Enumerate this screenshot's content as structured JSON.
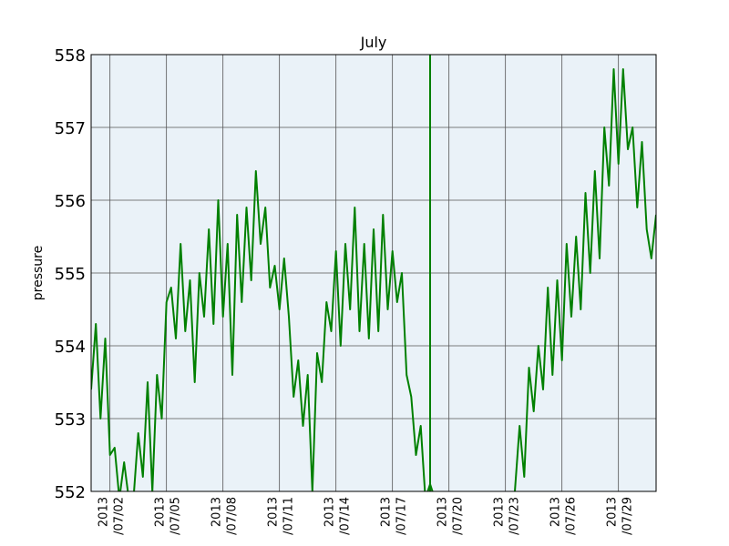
{
  "chart_data": {
    "type": "line",
    "title": "July",
    "ylabel": "pressure",
    "xlabel": "",
    "ylim": [
      552,
      558
    ],
    "xlim": [
      "2013-07-01",
      "2013-07-31"
    ],
    "grid": true,
    "colors": {
      "series": "#008000",
      "background": "#eaf2f8",
      "grid": "#555555"
    },
    "y_ticks": [
      "552",
      "553",
      "554",
      "555",
      "556",
      "557",
      "558"
    ],
    "x_ticks": [
      {
        "date": "2013-07-02",
        "line1": "2013",
        "line2": "/07/02"
      },
      {
        "date": "2013-07-05",
        "line1": "2013",
        "line2": "/07/05"
      },
      {
        "date": "2013-07-08",
        "line1": "2013",
        "line2": "/07/08"
      },
      {
        "date": "2013-07-11",
        "line1": "2013",
        "line2": "/07/11"
      },
      {
        "date": "2013-07-14",
        "line1": "2013",
        "line2": "/07/14"
      },
      {
        "date": "2013-07-17",
        "line1": "2013",
        "line2": "/07/17"
      },
      {
        "date": "2013-07-20",
        "line1": "2013",
        "line2": "/07/20"
      },
      {
        "date": "2013-07-23",
        "line1": "2013",
        "line2": "/07/23"
      },
      {
        "date": "2013-07-26",
        "line1": "2013",
        "line2": "/07/26"
      },
      {
        "date": "2013-07-29",
        "line1": "2013",
        "line2": "/07/29"
      }
    ],
    "series": [
      {
        "segments": [
          {
            "x": [
              "2013-07-01T00:00",
              "2013-07-01T06:00",
              "2013-07-01T12:00",
              "2013-07-01T18:00",
              "2013-07-02T00:00",
              "2013-07-02T06:00",
              "2013-07-02T12:00",
              "2013-07-02T18:00",
              "2013-07-03T00:00",
              "2013-07-03T06:00",
              "2013-07-03T12:00",
              "2013-07-03T18:00",
              "2013-07-04T00:00",
              "2013-07-04T06:00",
              "2013-07-04T12:00",
              "2013-07-04T18:00",
              "2013-07-05T00:00",
              "2013-07-05T06:00",
              "2013-07-05T12:00",
              "2013-07-05T18:00",
              "2013-07-06T00:00",
              "2013-07-06T06:00",
              "2013-07-06T12:00",
              "2013-07-06T18:00",
              "2013-07-07T00:00",
              "2013-07-07T06:00",
              "2013-07-07T12:00",
              "2013-07-07T18:00",
              "2013-07-08T00:00",
              "2013-07-08T06:00",
              "2013-07-08T12:00",
              "2013-07-08T18:00",
              "2013-07-09T00:00",
              "2013-07-09T06:00",
              "2013-07-09T12:00",
              "2013-07-09T18:00",
              "2013-07-10T00:00",
              "2013-07-10T06:00",
              "2013-07-10T12:00",
              "2013-07-10T18:00",
              "2013-07-11T00:00",
              "2013-07-11T06:00",
              "2013-07-11T12:00",
              "2013-07-11T18:00",
              "2013-07-12T00:00",
              "2013-07-12T06:00",
              "2013-07-12T12:00",
              "2013-07-12T18:00",
              "2013-07-13T00:00",
              "2013-07-13T06:00",
              "2013-07-13T12:00",
              "2013-07-13T18:00",
              "2013-07-14T00:00",
              "2013-07-14T06:00",
              "2013-07-14T12:00",
              "2013-07-14T18:00",
              "2013-07-15T00:00",
              "2013-07-15T06:00",
              "2013-07-15T12:00",
              "2013-07-15T18:00",
              "2013-07-16T00:00",
              "2013-07-16T06:00",
              "2013-07-16T12:00",
              "2013-07-16T18:00",
              "2013-07-17T00:00",
              "2013-07-17T06:00",
              "2013-07-17T12:00",
              "2013-07-17T18:00",
              "2013-07-18T00:00",
              "2013-07-18T06:00",
              "2013-07-18T12:00",
              "2013-07-18T18:00",
              "2013-07-19T00:00",
              "2013-07-19T06:00"
            ],
            "y": [
              553.4,
              554.3,
              553.0,
              554.1,
              552.5,
              552.6,
              551.9,
              552.4,
              551.9,
              551.9,
              552.8,
              552.2,
              553.5,
              552.0,
              553.6,
              553.0,
              554.6,
              554.8,
              554.1,
              555.4,
              554.2,
              554.9,
              553.5,
              555.0,
              554.4,
              555.6,
              554.3,
              556.0,
              554.4,
              555.4,
              553.6,
              555.8,
              554.6,
              555.9,
              554.9,
              556.4,
              555.4,
              555.9,
              554.8,
              555.1,
              554.5,
              555.2,
              554.4,
              553.3,
              553.8,
              552.9,
              553.6,
              552.0,
              553.9,
              553.5,
              554.6,
              554.2,
              555.3,
              554.0,
              555.4,
              554.5,
              555.9,
              554.2,
              555.4,
              554.1,
              555.6,
              554.2,
              555.8,
              554.5,
              555.3,
              554.6,
              555.0,
              553.6,
              553.3,
              552.5,
              552.9,
              551.9,
              552.1,
              551.9
            ]
          },
          {
            "x": [
              "2013-07-19T00:00",
              "2013-07-19T00:00"
            ],
            "y": [
              552.0,
              558.0
            ]
          },
          {
            "x": [
              "2013-07-23T12:00",
              "2013-07-23T18:00",
              "2013-07-24T00:00",
              "2013-07-24T06:00",
              "2013-07-24T12:00",
              "2013-07-24T18:00",
              "2013-07-25T00:00",
              "2013-07-25T06:00",
              "2013-07-25T12:00",
              "2013-07-25T18:00",
              "2013-07-26T00:00",
              "2013-07-26T06:00",
              "2013-07-26T12:00",
              "2013-07-26T18:00",
              "2013-07-27T00:00",
              "2013-07-27T06:00",
              "2013-07-27T12:00",
              "2013-07-27T18:00",
              "2013-07-28T00:00",
              "2013-07-28T06:00",
              "2013-07-28T12:00",
              "2013-07-28T18:00",
              "2013-07-29T00:00",
              "2013-07-29T06:00",
              "2013-07-29T12:00",
              "2013-07-29T18:00",
              "2013-07-30T00:00",
              "2013-07-30T06:00",
              "2013-07-30T12:00",
              "2013-07-30T18:00",
              "2013-07-31T00:00"
            ],
            "y": [
              552.0,
              552.9,
              552.2,
              553.7,
              553.1,
              554.0,
              553.4,
              554.8,
              553.6,
              554.9,
              553.8,
              555.4,
              554.4,
              555.5,
              554.5,
              556.1,
              555.0,
              556.4,
              555.2,
              557.0,
              556.2,
              557.8,
              556.5,
              557.8,
              556.7,
              557.0,
              555.9,
              556.8,
              555.6,
              555.2,
              555.8
            ]
          }
        ]
      }
    ]
  }
}
